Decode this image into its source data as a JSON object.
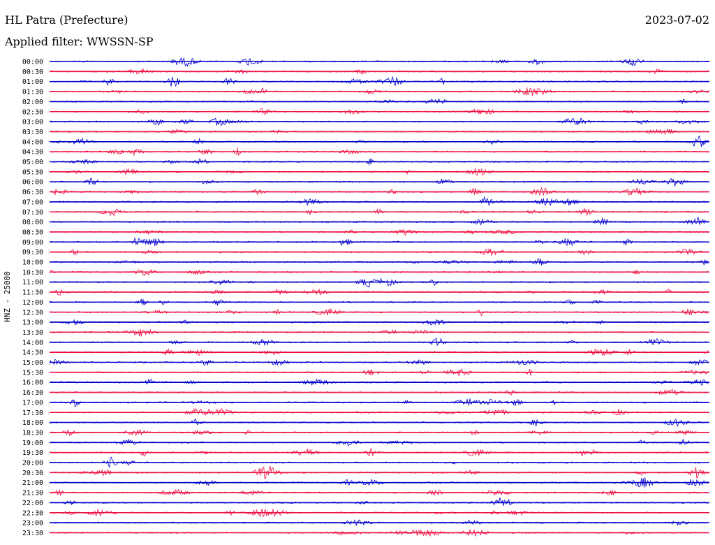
{
  "header": {
    "station": "HL Patra (Prefecture)",
    "date": "2023-07-02",
    "filter": "Applied filter: WWSSN-SP"
  },
  "chart_data": {
    "type": "line",
    "title": "HL Patra (Prefecture)",
    "subtitle": "Applied filter: WWSSN-SP",
    "date": "2023-07-02",
    "ylabel": "HNZ - 25000",
    "xlabel": "",
    "grid": false,
    "series_colors": [
      "#0000cc",
      "#ee1144"
    ],
    "traces": [
      {
        "time": "00:00",
        "color": "blue"
      },
      {
        "time": "00:30",
        "color": "red"
      },
      {
        "time": "01:00",
        "color": "blue"
      },
      {
        "time": "01:30",
        "color": "red"
      },
      {
        "time": "02:00",
        "color": "blue"
      },
      {
        "time": "02:30",
        "color": "red"
      },
      {
        "time": "03:00",
        "color": "blue"
      },
      {
        "time": "03:30",
        "color": "red"
      },
      {
        "time": "04:00",
        "color": "blue"
      },
      {
        "time": "04:30",
        "color": "red"
      },
      {
        "time": "05:00",
        "color": "blue"
      },
      {
        "time": "05:30",
        "color": "red"
      },
      {
        "time": "06:00",
        "color": "blue"
      },
      {
        "time": "06:30",
        "color": "red"
      },
      {
        "time": "07:00",
        "color": "blue"
      },
      {
        "time": "07:30",
        "color": "red"
      },
      {
        "time": "08:00",
        "color": "blue"
      },
      {
        "time": "08:30",
        "color": "red"
      },
      {
        "time": "09:00",
        "color": "blue"
      },
      {
        "time": "09:30",
        "color": "red"
      },
      {
        "time": "10:00",
        "color": "blue"
      },
      {
        "time": "10:30",
        "color": "red"
      },
      {
        "time": "11:00",
        "color": "blue"
      },
      {
        "time": "11:30",
        "color": "red"
      },
      {
        "time": "12:00",
        "color": "blue"
      },
      {
        "time": "12:30",
        "color": "red"
      },
      {
        "time": "13:00",
        "color": "blue"
      },
      {
        "time": "13:30",
        "color": "red"
      },
      {
        "time": "14:00",
        "color": "blue"
      },
      {
        "time": "14:30",
        "color": "red"
      },
      {
        "time": "15:00",
        "color": "blue"
      },
      {
        "time": "15:30",
        "color": "red"
      },
      {
        "time": "16:00",
        "color": "blue"
      },
      {
        "time": "16:30",
        "color": "red"
      },
      {
        "time": "17:00",
        "color": "blue"
      },
      {
        "time": "17:30",
        "color": "red"
      },
      {
        "time": "18:00",
        "color": "blue"
      },
      {
        "time": "18:30",
        "color": "red"
      },
      {
        "time": "19:00",
        "color": "blue"
      },
      {
        "time": "19:30",
        "color": "red"
      },
      {
        "time": "20:00",
        "color": "blue"
      },
      {
        "time": "20:30",
        "color": "red"
      },
      {
        "time": "21:00",
        "color": "blue"
      },
      {
        "time": "21:30",
        "color": "red"
      },
      {
        "time": "22:00",
        "color": "blue"
      },
      {
        "time": "22:30",
        "color": "red"
      },
      {
        "time": "23:00",
        "color": "blue"
      },
      {
        "time": "23:30",
        "color": "red"
      }
    ]
  }
}
